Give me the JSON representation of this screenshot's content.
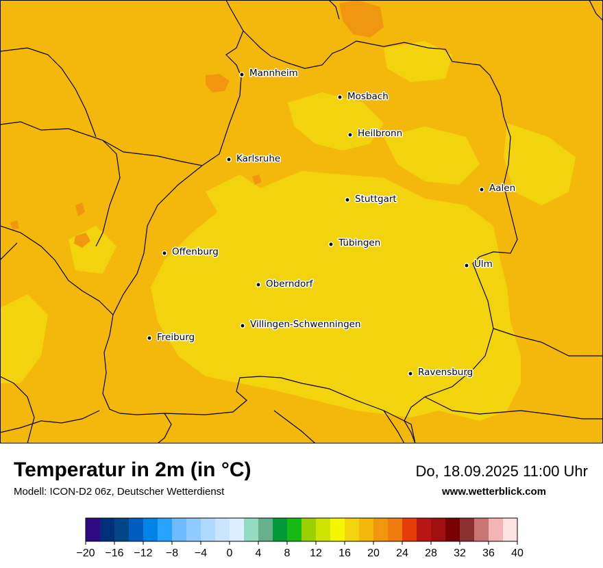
{
  "map": {
    "base_color": "#f4b80c",
    "cooler_color": "#f2d40e",
    "warmer_color": "#f0960f",
    "cities": [
      {
        "name": "Mannheim"
      },
      {
        "name": "Mosbach"
      },
      {
        "name": "Heilbronn"
      },
      {
        "name": "Karlsruhe"
      },
      {
        "name": "Aalen"
      },
      {
        "name": "Stuttgart"
      },
      {
        "name": "Tübingen"
      },
      {
        "name": "Offenburg"
      },
      {
        "name": "Ulm"
      },
      {
        "name": "Oberndorf"
      },
      {
        "name": "Villingen-Schwenningen"
      },
      {
        "name": "Freiburg"
      },
      {
        "name": "Ravensburg"
      }
    ]
  },
  "header": {
    "title": "Temperatur in 2m (in °C)",
    "subtitle": "Modell: ICON-D2 06z, Deutscher Wetterdienst",
    "datetime": "Do, 18.09.2025 11:00 Uhr",
    "website": "www.wetterblick.com"
  },
  "legend": {
    "colors": [
      "#2e0a86",
      "#00307a",
      "#004585",
      "#005cbe",
      "#0083e6",
      "#2aa2ff",
      "#6ebcff",
      "#8fcbff",
      "#b0d9ff",
      "#cbe4ff",
      "#dceeff",
      "#93dbc0",
      "#66b08d",
      "#029a39",
      "#17b914",
      "#9ccf00",
      "#cde400",
      "#f3f700",
      "#f2d40e",
      "#f4b80c",
      "#f0960f",
      "#f07b11",
      "#e63c08",
      "#b81515",
      "#a01010",
      "#7a0000",
      "#8b3030",
      "#c87474",
      "#f3b3b3",
      "#fde2e2"
    ],
    "ticks": [
      "−20",
      "−16",
      "−12",
      "−8",
      "−4",
      "0",
      "4",
      "8",
      "12",
      "16",
      "20",
      "24",
      "28",
      "32",
      "36",
      "40"
    ]
  }
}
